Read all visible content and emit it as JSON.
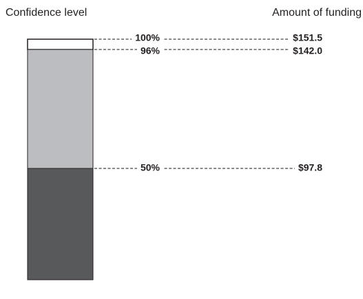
{
  "header": {
    "left": "Confidence level",
    "right": "Amount of funding"
  },
  "levels": [
    {
      "confidence": "100%",
      "funding": "$151.5"
    },
    {
      "confidence": "96%",
      "funding": "$142.0"
    },
    {
      "confidence": "50%",
      "funding": "$97.8"
    }
  ]
}
